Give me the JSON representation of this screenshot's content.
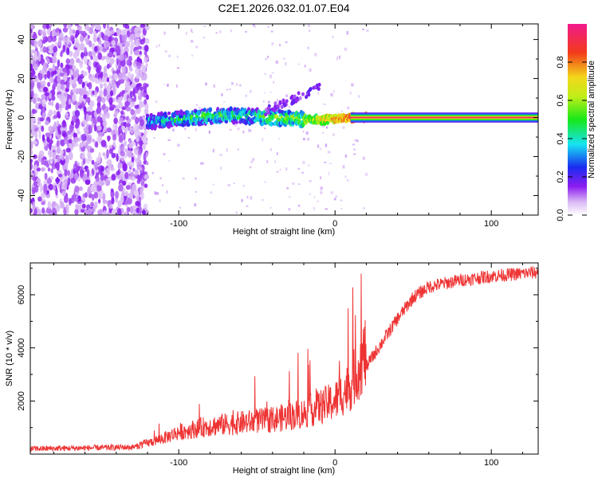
{
  "title": "C2E1.2026.032.01.07.E04",
  "chart_data": [
    {
      "type": "heatmap",
      "xlabel": "Height of straight line (km)",
      "ylabel": "Frequency (Hz)",
      "xlim": [
        -195,
        130
      ],
      "ylim": [
        -50,
        48
      ],
      "x_ticks": [
        -100,
        0,
        100
      ],
      "x_tick_labels": [
        "-100",
        "0",
        "100"
      ],
      "y_ticks": [
        -40,
        -20,
        0,
        20,
        40
      ],
      "y_tick_labels": [
        "-40",
        "-20",
        "0",
        "20",
        "40"
      ],
      "noise_region_x": [
        -195,
        -120
      ],
      "signal_trace": [
        {
          "x": -120,
          "freq": -2,
          "amp": 0.35
        },
        {
          "x": -100,
          "freq": -1,
          "amp": 0.45
        },
        {
          "x": -80,
          "freq": 1,
          "amp": 0.5
        },
        {
          "x": -60,
          "freq": 1,
          "amp": 0.45
        },
        {
          "x": -40,
          "freq": 0,
          "amp": 0.55
        },
        {
          "x": -20,
          "freq": -1,
          "amp": 0.6
        },
        {
          "x": -5,
          "freq": -1,
          "amp": 0.75
        },
        {
          "x": 10,
          "freq": 0,
          "amp": 0.85
        },
        {
          "x": 20,
          "freq": 0,
          "amp": 0.95
        },
        {
          "x": 130,
          "freq": 0,
          "amp": 0.95
        }
      ],
      "colorbar": {
        "label": "Normalized spectral amplitude",
        "range": [
          0,
          1
        ],
        "ticks": [
          0.0,
          0.2,
          0.4,
          0.6,
          0.8
        ],
        "tick_labels": [
          "0.0",
          "0.2",
          "0.4",
          "0.6",
          "0.8"
        ]
      }
    },
    {
      "type": "line",
      "xlabel": "Height of straight line (km)",
      "ylabel": "SNR (10 * v/v)",
      "xlim": [
        -195,
        130
      ],
      "ylim": [
        0,
        7200
      ],
      "x_ticks": [
        -100,
        0,
        100
      ],
      "x_tick_labels": [
        "-100",
        "0",
        "100"
      ],
      "y_ticks": [
        2000,
        4000,
        6000
      ],
      "y_tick_labels": [
        "2000",
        "4000",
        "6000"
      ],
      "color": "#ee3333",
      "series": [
        {
          "name": "SNR",
          "x": [
            -195,
            -160,
            -130,
            -120,
            -110,
            -100,
            -90,
            -80,
            -70,
            -60,
            -50,
            -40,
            -30,
            -20,
            -10,
            0,
            10,
            20,
            30,
            40,
            50,
            60,
            80,
            100,
            130
          ],
          "values": [
            200,
            230,
            260,
            350,
            500,
            700,
            800,
            900,
            950,
            1000,
            1050,
            1100,
            1200,
            1300,
            1500,
            1700,
            2200,
            3300,
            4200,
            5100,
            5900,
            6300,
            6550,
            6700,
            6850
          ]
        }
      ]
    }
  ]
}
